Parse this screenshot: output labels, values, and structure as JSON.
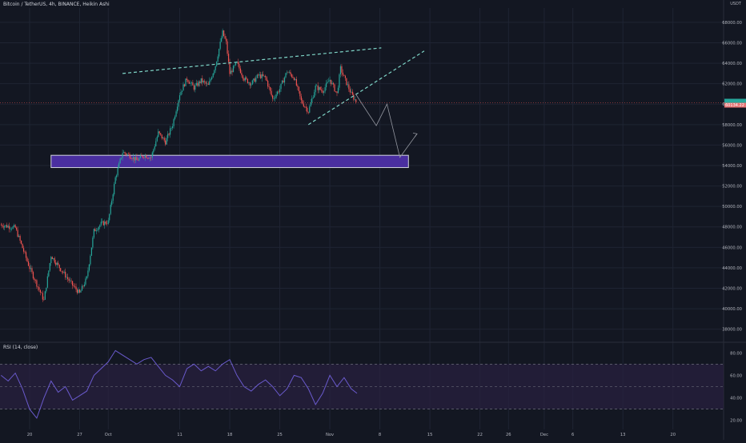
{
  "header": {
    "title": "Bitcoin / TetherUS, 4h, BINANCE, Heikin Ashi",
    "currency": "USDT"
  },
  "rsi_panel": {
    "label": "RSI (14, close)"
  },
  "colors": {
    "background": "#131722",
    "grid": "#1f2433",
    "up_candle": "#26a69a",
    "down_candle": "#ef5350",
    "zone_fill": "#4a2fa0",
    "zone_border": "#d1d4dc",
    "trendline": "#7fd6c8",
    "projection": "#9598a1",
    "rsi_line": "#6a5acd",
    "rsi_band": "#2a2140",
    "price_label_bg": "#e57373",
    "price_label_bg2": "#26a69a"
  },
  "chart_data": [
    {
      "type": "candlestick",
      "title": "Bitcoin / TetherUS, 4h, BINANCE, Heikin Ashi",
      "xlabel": "",
      "ylabel": "",
      "price_axis_ticks": [
        "38000.00",
        "40000.00",
        "42000.00",
        "44000.00",
        "46000.00",
        "48000.00",
        "50000.00",
        "52000.00",
        "54000.00",
        "56000.00",
        "58000.00",
        "60000.00",
        "62000.00",
        "64000.00",
        "66000.00",
        "68000.00"
      ],
      "ylim": [
        36800,
        69400
      ],
      "time_axis_ticks": [
        "20",
        "27",
        "Oct",
        "11",
        "18",
        "25",
        "Nov",
        "8",
        "15",
        "22",
        "26",
        "Dec",
        "6",
        "13",
        "20"
      ],
      "time_axis_positions_days": [
        0,
        7,
        11,
        21,
        28,
        35,
        42,
        49,
        56,
        63,
        67,
        72,
        76,
        83,
        90
      ],
      "last_price_label": "60134.22",
      "price_series_days": [
        -4,
        -2,
        0,
        2,
        3,
        4,
        6,
        7,
        8,
        9,
        10,
        11,
        12,
        13,
        14,
        15,
        16,
        17,
        18,
        19,
        20,
        21,
        22,
        23,
        24,
        25,
        26,
        27,
        27.5,
        28,
        29,
        30,
        31,
        32,
        33,
        34,
        35,
        36,
        37,
        38,
        39,
        40,
        41,
        42,
        43,
        43.5,
        44,
        45,
        45.8
      ],
      "price_series_values": [
        48200,
        47900,
        44000,
        40800,
        45200,
        44200,
        42300,
        41500,
        43000,
        47600,
        48300,
        48500,
        52800,
        55300,
        55000,
        54500,
        55000,
        54800,
        57200,
        56300,
        58000,
        61000,
        62500,
        61600,
        62300,
        61800,
        63800,
        67000,
        66000,
        63000,
        64000,
        62500,
        62000,
        62800,
        62600,
        60500,
        61500,
        63200,
        62600,
        60300,
        59300,
        61700,
        61300,
        62400,
        61000,
        63500,
        62600,
        61000,
        60100
      ],
      "zone": {
        "price_low": 53800,
        "price_high": 55000,
        "day_start": 3,
        "day_end": 53
      },
      "wedge_upper": {
        "start": [
          13,
          63000
        ],
        "end": [
          49.2,
          65500
        ]
      },
      "wedge_lower": {
        "start": [
          39,
          58000
        ],
        "end": [
          55.2,
          65200
        ]
      },
      "projection_path": [
        [
          45.6,
          61000
        ],
        [
          48.5,
          57900
        ],
        [
          50,
          60000
        ],
        [
          51.8,
          54800
        ],
        [
          54.2,
          57100
        ]
      ]
    },
    {
      "type": "line",
      "title": "RSI (14, close)",
      "xlabel": "",
      "ylabel": "",
      "axis_ticks": [
        "20.00",
        "40.00",
        "60.00",
        "80.00"
      ],
      "ylim": [
        12,
        88
      ],
      "band": [
        30,
        70
      ],
      "midline": 50,
      "days": [
        -4,
        -3,
        -2,
        -1,
        0,
        1,
        2,
        3,
        4,
        5,
        6,
        7,
        8,
        9,
        10,
        11,
        12,
        13,
        14,
        15,
        16,
        17,
        18,
        19,
        20,
        21,
        22,
        23,
        24,
        25,
        26,
        27,
        28,
        29,
        30,
        31,
        32,
        33,
        34,
        35,
        36,
        37,
        38,
        39,
        40,
        41,
        42,
        43,
        44,
        45,
        45.8
      ],
      "values": [
        60,
        55,
        62,
        48,
        30,
        22,
        40,
        55,
        45,
        50,
        38,
        42,
        46,
        60,
        66,
        72,
        82,
        78,
        74,
        70,
        74,
        76,
        68,
        60,
        56,
        50,
        66,
        70,
        64,
        68,
        64,
        70,
        74,
        60,
        50,
        46,
        52,
        56,
        50,
        42,
        48,
        60,
        58,
        48,
        34,
        44,
        60,
        50,
        58,
        48,
        44
      ]
    }
  ]
}
